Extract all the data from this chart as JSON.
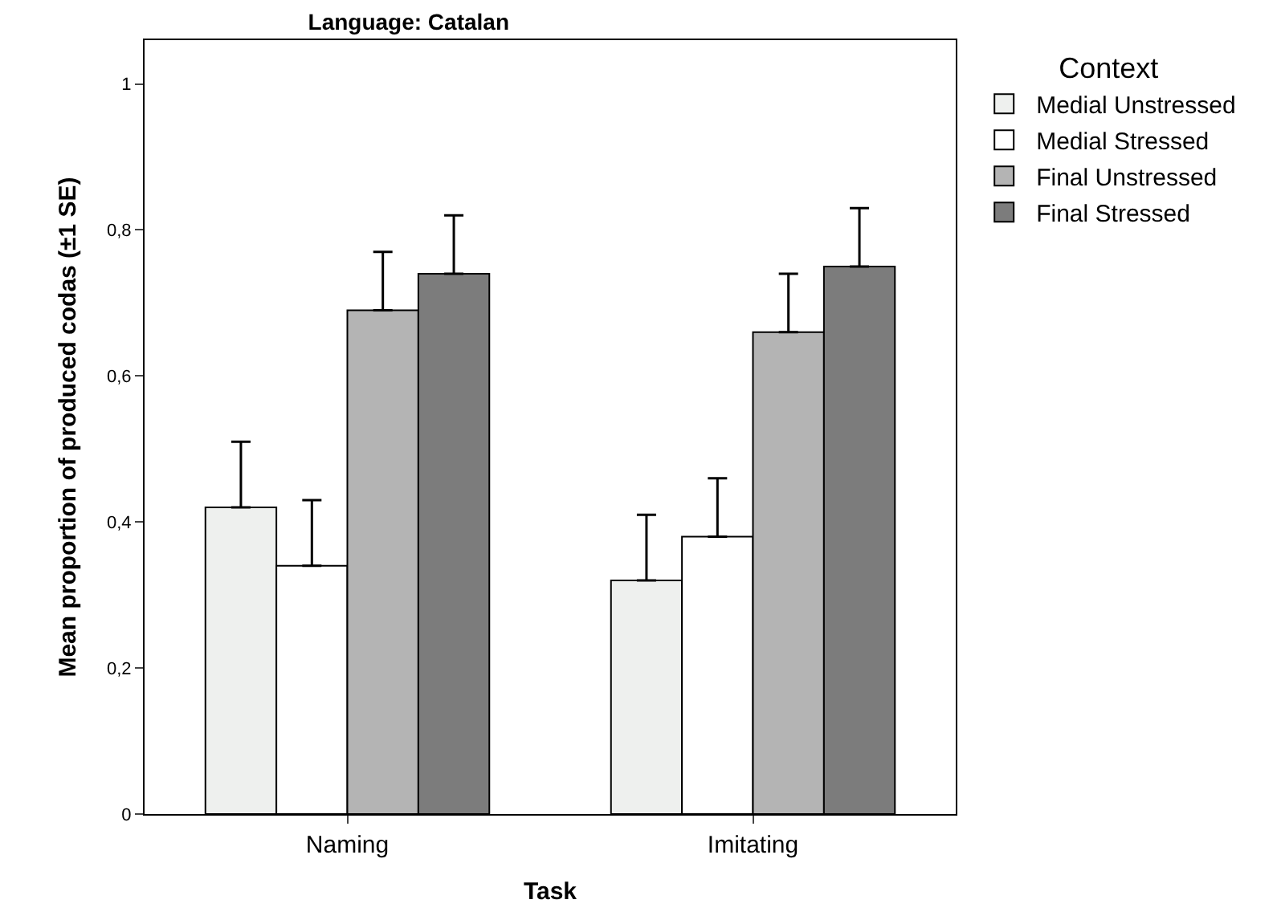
{
  "chart_data": {
    "type": "bar",
    "title": "Language: Catalan",
    "xlabel": "Task",
    "ylabel": "Mean proportion of produced codas (±1 SE)",
    "legend_title": "Context",
    "categories": [
      "Naming",
      "Imitating"
    ],
    "series": [
      {
        "name": "Medial Unstressed",
        "color": "#eef0ee",
        "values": [
          0.42,
          0.32
        ],
        "errors": [
          [
            0.42,
            0.51
          ],
          [
            0.32,
            0.41
          ]
        ]
      },
      {
        "name": "Medial Stressed",
        "color": "#ffffff",
        "values": [
          0.34,
          0.38
        ],
        "errors": [
          [
            0.34,
            0.43
          ],
          [
            0.38,
            0.46
          ]
        ]
      },
      {
        "name": "Final Unstressed",
        "color": "#b4b4b4",
        "values": [
          0.69,
          0.66
        ],
        "errors": [
          [
            0.69,
            0.77
          ],
          [
            0.66,
            0.74
          ]
        ]
      },
      {
        "name": "Final Stressed",
        "color": "#7c7c7c",
        "values": [
          0.74,
          0.75
        ],
        "errors": [
          [
            0.74,
            0.82
          ],
          [
            0.75,
            0.83
          ]
        ]
      }
    ],
    "ylim": [
      0,
      1.06
    ],
    "yticks": [
      {
        "value": 0,
        "label": "0"
      },
      {
        "value": 0.2,
        "label": "0,2"
      },
      {
        "value": 0.4,
        "label": "0,4"
      },
      {
        "value": 0.6,
        "label": "0,6"
      },
      {
        "value": 0.8,
        "label": "0,8"
      },
      {
        "value": 1,
        "label": "1"
      }
    ],
    "legend": "top right"
  }
}
